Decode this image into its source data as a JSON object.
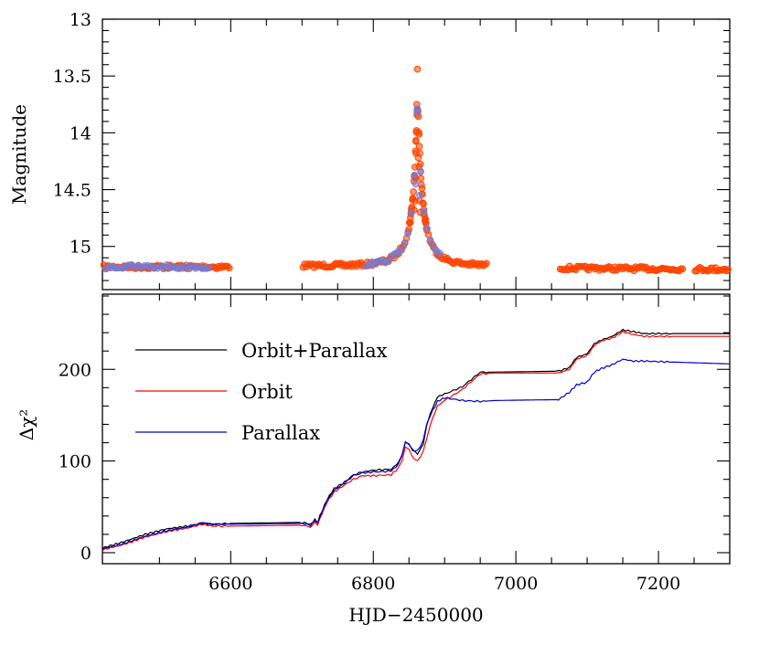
{
  "chart_data": [
    {
      "type": "scatter",
      "ylabel": "Magnitude",
      "xlim": [
        6420,
        7300
      ],
      "ylim": [
        13.0,
        15.38
      ],
      "y_inverted": true,
      "y_ticks": [
        13,
        13.5,
        14,
        14.5,
        15
      ],
      "y_tick_labels": [
        "13",
        "13.5",
        "14",
        "14.5",
        "15"
      ],
      "colors": {
        "series_a": "#ff4500",
        "series_b": "#6a7fe6"
      },
      "gaps": [
        [
          6600,
          6700
        ],
        [
          6960,
          7060
        ],
        [
          7235,
          7250
        ]
      ],
      "peak": {
        "t0": 6862.2,
        "tE": 40.0,
        "u0": 0.06,
        "baseline": 15.17,
        "fs": 0.16
      },
      "spikes": [
        {
          "x": 6862.0,
          "y": 13.44
        },
        {
          "x": 6861.0,
          "y": 13.75
        },
        {
          "x": 6861.5,
          "y": 13.8
        },
        {
          "x": 6860.5,
          "y": 13.98
        },
        {
          "x": 6860.0,
          "y": 14.18
        },
        {
          "x": 6863.0,
          "y": 14.22
        },
        {
          "x": 6864.0,
          "y": 14.3
        },
        {
          "x": 6859.5,
          "y": 14.4
        },
        {
          "x": 6858.5,
          "y": 14.6
        },
        {
          "x": 6865.0,
          "y": 14.6
        },
        {
          "x": 6857.0,
          "y": 14.68
        },
        {
          "x": 6852.0,
          "y": 14.79
        },
        {
          "x": 6866.0,
          "y": 14.7
        }
      ],
      "spikes_b": [
        {
          "x": 6861.5,
          "y": 13.82
        },
        {
          "x": 6859.5,
          "y": 14.45
        },
        {
          "x": 6865.0,
          "y": 14.55
        }
      ]
    },
    {
      "type": "line",
      "xlabel": "HJD−2450000",
      "ylabel": "Δχ²",
      "xlim": [
        6420,
        7300
      ],
      "ylim": [
        -12,
        282
      ],
      "x_ticks": [
        6600,
        6800,
        7000,
        7200
      ],
      "x_tick_labels": [
        "6600",
        "6800",
        "7000",
        "7200"
      ],
      "y_ticks": [
        0,
        100,
        200
      ],
      "y_tick_labels": [
        "0",
        "100",
        "200"
      ],
      "legend": "top-left",
      "series": [
        {
          "name": "Orbit+Parallax",
          "color": "#000000",
          "points": [
            [
              6420,
              5
            ],
            [
              6450,
              12
            ],
            [
              6480,
              20
            ],
            [
              6510,
              26
            ],
            [
              6540,
              29
            ],
            [
              6560,
              32
            ],
            [
              6575,
              31
            ],
            [
              6600,
              32
            ],
            [
              6700,
              33
            ],
            [
              6712,
              31
            ],
            [
              6718,
              36
            ],
            [
              6722,
              33
            ],
            [
              6725,
              40
            ],
            [
              6735,
              58
            ],
            [
              6745,
              70
            ],
            [
              6760,
              77
            ],
            [
              6772,
              85
            ],
            [
              6785,
              88
            ],
            [
              6800,
              90
            ],
            [
              6825,
              91
            ],
            [
              6835,
              98
            ],
            [
              6840,
              107
            ],
            [
              6845,
              120
            ],
            [
              6850,
              118
            ],
            [
              6855,
              112
            ],
            [
              6862,
              108
            ],
            [
              6870,
              118
            ],
            [
              6875,
              140
            ],
            [
              6880,
              152
            ],
            [
              6890,
              170
            ],
            [
              6900,
              173
            ],
            [
              6925,
              181
            ],
            [
              6950,
              197
            ],
            [
              6970,
              197
            ],
            [
              7060,
              198
            ],
            [
              7075,
              202
            ],
            [
              7085,
              213
            ],
            [
              7100,
              217
            ],
            [
              7110,
              228
            ],
            [
              7120,
              232
            ],
            [
              7135,
              236
            ],
            [
              7150,
              243
            ],
            [
              7165,
              241
            ],
            [
              7180,
              239
            ],
            [
              7220,
              239
            ],
            [
              7300,
              239
            ]
          ]
        },
        {
          "name": "Orbit",
          "color": "#ff0000",
          "points": [
            [
              6420,
              3
            ],
            [
              6450,
              9
            ],
            [
              6480,
              17
            ],
            [
              6510,
              23
            ],
            [
              6540,
              27
            ],
            [
              6560,
              31
            ],
            [
              6575,
              29
            ],
            [
              6600,
              29
            ],
            [
              6700,
              30
            ],
            [
              6712,
              28
            ],
            [
              6718,
              33
            ],
            [
              6722,
              30
            ],
            [
              6725,
              37
            ],
            [
              6735,
              55
            ],
            [
              6745,
              66
            ],
            [
              6760,
              74
            ],
            [
              6772,
              80
            ],
            [
              6785,
              84
            ],
            [
              6800,
              84
            ],
            [
              6825,
              85
            ],
            [
              6835,
              92
            ],
            [
              6840,
              100
            ],
            [
              6845,
              116
            ],
            [
              6850,
              112
            ],
            [
              6855,
              104
            ],
            [
              6862,
              100
            ],
            [
              6870,
              110
            ],
            [
              6875,
              125
            ],
            [
              6880,
              140
            ],
            [
              6890,
              160
            ],
            [
              6900,
              166
            ],
            [
              6925,
              178
            ],
            [
              6950,
              195
            ],
            [
              6970,
              196
            ],
            [
              7060,
              196
            ],
            [
              7075,
              200
            ],
            [
              7085,
              211
            ],
            [
              7100,
              215
            ],
            [
              7110,
              226
            ],
            [
              7120,
              231
            ],
            [
              7135,
              234
            ],
            [
              7150,
              241
            ],
            [
              7165,
              238
            ],
            [
              7180,
              236
            ],
            [
              7220,
              236
            ],
            [
              7300,
              236
            ]
          ]
        },
        {
          "name": "Parallax",
          "color": "#0000cd",
          "points": [
            [
              6420,
              4
            ],
            [
              6450,
              10
            ],
            [
              6480,
              18
            ],
            [
              6510,
              24
            ],
            [
              6540,
              28
            ],
            [
              6560,
              33
            ],
            [
              6575,
              31
            ],
            [
              6600,
              31
            ],
            [
              6700,
              32
            ],
            [
              6712,
              30
            ],
            [
              6718,
              35
            ],
            [
              6722,
              32
            ],
            [
              6725,
              39
            ],
            [
              6735,
              57
            ],
            [
              6745,
              68
            ],
            [
              6760,
              76
            ],
            [
              6772,
              84
            ],
            [
              6785,
              87
            ],
            [
              6800,
              88
            ],
            [
              6825,
              89
            ],
            [
              6835,
              96
            ],
            [
              6840,
              105
            ],
            [
              6845,
              122
            ],
            [
              6850,
              118
            ],
            [
              6855,
              112
            ],
            [
              6862,
              111
            ],
            [
              6870,
              122
            ],
            [
              6875,
              140
            ],
            [
              6880,
              150
            ],
            [
              6890,
              165
            ],
            [
              6900,
              169
            ],
            [
              6925,
              166
            ],
            [
              6950,
              165
            ],
            [
              6970,
              166
            ],
            [
              7060,
              167
            ],
            [
              7075,
              175
            ],
            [
              7085,
              183
            ],
            [
              7100,
              186
            ],
            [
              7110,
              197
            ],
            [
              7120,
              201
            ],
            [
              7135,
              205
            ],
            [
              7150,
              211
            ],
            [
              7165,
              209
            ],
            [
              7180,
              209
            ],
            [
              7220,
              208
            ],
            [
              7300,
              206
            ]
          ]
        }
      ]
    }
  ]
}
